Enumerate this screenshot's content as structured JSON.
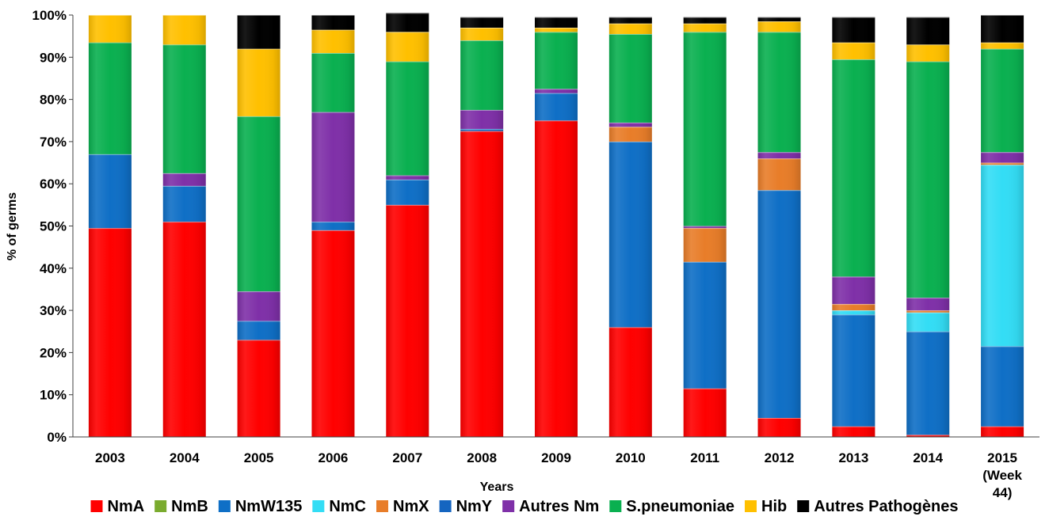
{
  "chart_data": {
    "type": "bar",
    "stacked": "percent",
    "xlabel": "Years",
    "ylabel": "% of germs",
    "ylim": [
      0,
      100
    ],
    "y_ticks": [
      "0%",
      "10%",
      "20%",
      "30%",
      "40%",
      "50%",
      "60%",
      "70%",
      "80%",
      "90%",
      "100%"
    ],
    "grid": false,
    "legend_position": "bottom",
    "categories": [
      "2003",
      "2004",
      "2005",
      "2006",
      "2007",
      "2008",
      "2009",
      "2010",
      "2011",
      "2012",
      "2013",
      "2014",
      "2015 (Week 44)"
    ],
    "category_label_lines": [
      [
        "2003"
      ],
      [
        "2004"
      ],
      [
        "2005"
      ],
      [
        "2006"
      ],
      [
        "2007"
      ],
      [
        "2008"
      ],
      [
        "2009"
      ],
      [
        "2010"
      ],
      [
        "2011"
      ],
      [
        "2012"
      ],
      [
        "2013"
      ],
      [
        "2014"
      ],
      [
        "2015",
        "(Week",
        "44)"
      ]
    ],
    "series": [
      {
        "name": "NmA",
        "color": "#ff0000",
        "values": [
          49.5,
          51,
          23,
          49,
          55,
          72.5,
          75,
          26,
          11.5,
          4.5,
          2.5,
          0.5,
          2.5
        ]
      },
      {
        "name": "NmB",
        "color": "#7aab2e",
        "values": [
          0,
          0,
          0,
          0,
          0,
          0,
          0,
          0,
          0,
          0,
          0,
          0,
          0
        ]
      },
      {
        "name": "NmW135",
        "color": "#0f6fc6",
        "values": [
          17.5,
          8.5,
          4.5,
          2,
          6,
          0.5,
          6.5,
          44,
          30,
          54,
          26.5,
          24.5,
          19
        ]
      },
      {
        "name": "NmC",
        "color": "#33ddf5",
        "values": [
          0,
          0,
          0,
          0,
          0,
          0,
          0,
          0,
          0,
          0,
          1,
          4.5,
          43
        ]
      },
      {
        "name": "NmX",
        "color": "#e87d29",
        "values": [
          0,
          0,
          0,
          0,
          0,
          0,
          0,
          3.5,
          8,
          7.5,
          1.5,
          0.5,
          0.5
        ]
      },
      {
        "name": "NmY",
        "color": "#1565c0",
        "values": [
          0,
          0,
          0,
          0,
          0,
          0,
          0,
          0,
          0,
          0,
          0,
          0,
          0
        ]
      },
      {
        "name": "Autres Nm",
        "color": "#7f30a8",
        "values": [
          0,
          3,
          7,
          26,
          1,
          4.5,
          1,
          1,
          0.5,
          1.5,
          6.5,
          3,
          2.5
        ]
      },
      {
        "name": "S.pneumoniae",
        "color": "#0ab050",
        "values": [
          26.5,
          30.5,
          41.5,
          14,
          27,
          16.5,
          13.5,
          21,
          46,
          28.5,
          51.5,
          56,
          24.5
        ]
      },
      {
        "name": "Hib",
        "color": "#ffc000",
        "values": [
          6.5,
          7,
          16,
          5.5,
          7,
          3,
          1,
          2.5,
          2,
          2.5,
          4,
          4,
          1.5
        ]
      },
      {
        "name": "Autres Pathogènes",
        "color": "#000000",
        "values": [
          0,
          0,
          8,
          3.5,
          4.5,
          2.5,
          2.5,
          1.5,
          1.5,
          1,
          6,
          6.5,
          6.5
        ]
      }
    ]
  }
}
